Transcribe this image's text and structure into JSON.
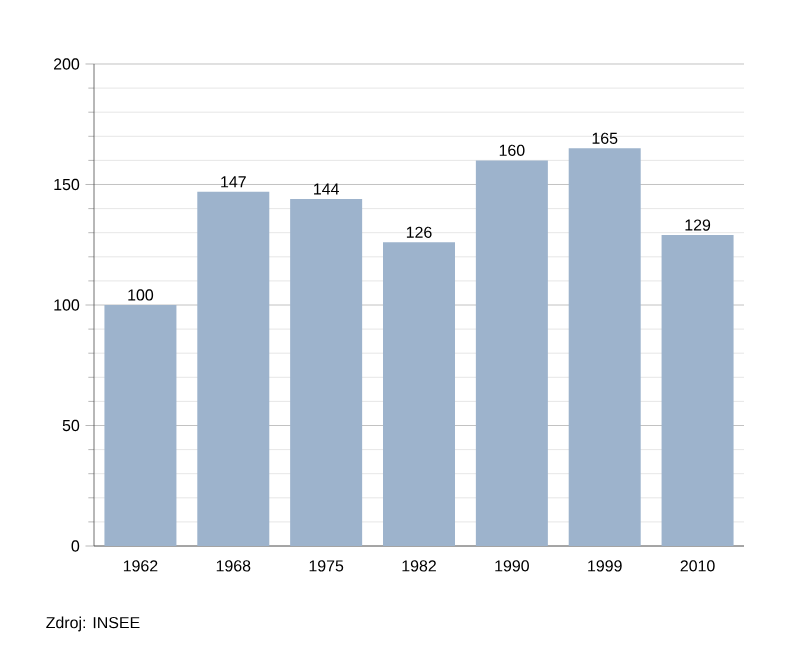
{
  "chart_data": {
    "type": "bar",
    "categories": [
      "1962",
      "1968",
      "1975",
      "1982",
      "1990",
      "1999",
      "2010"
    ],
    "values": [
      100,
      147,
      144,
      126,
      160,
      165,
      129
    ],
    "color": "#9db3cc",
    "ylim": [
      0,
      200
    ],
    "yticks": [
      0,
      50,
      100,
      150,
      200
    ],
    "grid": "y",
    "data_labels": true,
    "annotations": [
      "Zdroj: INSEE"
    ]
  }
}
